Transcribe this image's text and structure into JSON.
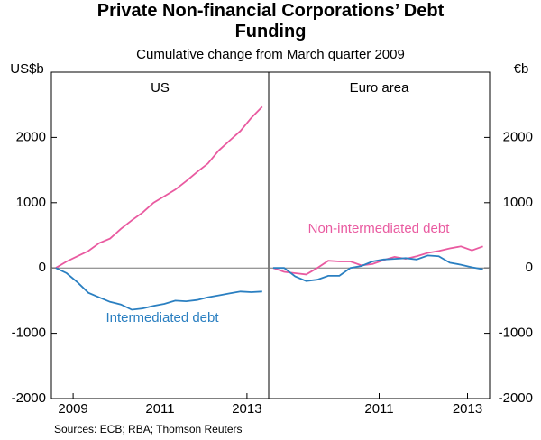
{
  "chart_data": [
    {
      "type": "line",
      "title": "Private Non-financial Corporations’ Debt Funding",
      "subtitle": "Cumulative change from March quarter 2009",
      "panel_title": "US",
      "y_label": "US$b",
      "x": [
        2009.1,
        2009.35,
        2009.6,
        2009.85,
        2010.1,
        2010.35,
        2010.6,
        2010.85,
        2011.1,
        2011.35,
        2011.6,
        2011.85,
        2012.1,
        2012.35,
        2012.6,
        2012.85,
        2013.1,
        2013.35,
        2013.6,
        2013.85
      ],
      "series": [
        {
          "color": "#e95aa0",
          "values": [
            0,
            100,
            180,
            260,
            380,
            450,
            600,
            730,
            850,
            1000,
            1100,
            1200,
            1330,
            1470,
            1600,
            1800,
            1950,
            2100,
            2300,
            2470
          ]
        },
        {
          "name": "Intermediated debt",
          "color": "#2a7fc1",
          "values": [
            0,
            -80,
            -220,
            -380,
            -450,
            -520,
            -560,
            -640,
            -620,
            -580,
            -550,
            -500,
            -510,
            -490,
            -450,
            -420,
            -390,
            -360,
            -370,
            -360
          ]
        }
      ],
      "xlim": [
        2009.0,
        2014.0
      ],
      "xticks": [
        {
          "value": 2009.5,
          "label": "2009"
        },
        {
          "value": 2011.5,
          "label": "2011"
        },
        {
          "value": 2013.5,
          "label": "2013"
        }
      ],
      "ylim": [
        -2000,
        3000
      ],
      "yticks": [
        -2000,
        -1000,
        0,
        1000,
        2000
      ]
    },
    {
      "type": "line",
      "panel_title": "Euro area",
      "y_label": "€b",
      "x": [
        2009.1,
        2009.35,
        2009.6,
        2009.85,
        2010.1,
        2010.35,
        2010.6,
        2010.85,
        2011.1,
        2011.35,
        2011.6,
        2011.85,
        2012.1,
        2012.35,
        2012.6,
        2012.85,
        2013.1,
        2013.35,
        2013.6,
        2013.85
      ],
      "series": [
        {
          "name": "Non-intermediated debt",
          "color": "#e95aa0",
          "values": [
            0,
            -60,
            -80,
            -100,
            0,
            110,
            100,
            100,
            40,
            60,
            120,
            170,
            140,
            180,
            230,
            260,
            300,
            330,
            270,
            330
          ]
        },
        {
          "color": "#2a7fc1",
          "values": [
            0,
            0,
            -130,
            -200,
            -180,
            -120,
            -120,
            0,
            30,
            100,
            130,
            140,
            150,
            130,
            190,
            180,
            80,
            50,
            10,
            -20
          ]
        }
      ],
      "xlim": [
        2009.0,
        2014.0
      ],
      "xticks": [
        {
          "value": 2011.5,
          "label": "2011"
        },
        {
          "value": 2013.5,
          "label": "2013"
        }
      ],
      "ylim": [
        -2000,
        3000
      ],
      "yticks": [
        -2000,
        -1000,
        0,
        1000,
        2000
      ]
    }
  ],
  "source": "Sources: ECB; RBA; Thomson Reuters"
}
